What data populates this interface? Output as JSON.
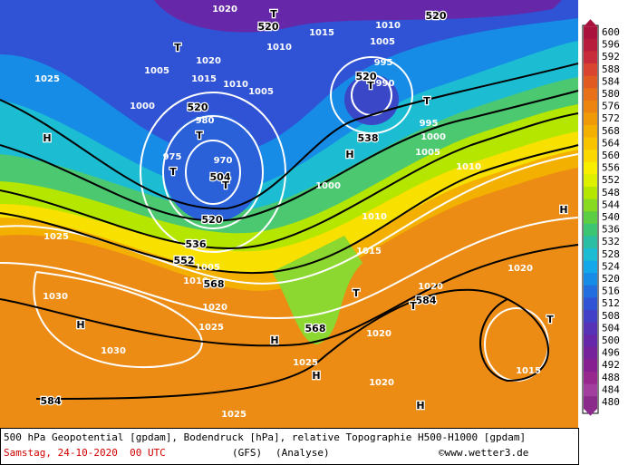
{
  "legend": {
    "levels": [
      600,
      596,
      592,
      588,
      584,
      580,
      576,
      572,
      568,
      564,
      560,
      556,
      552,
      548,
      544,
      540,
      536,
      532,
      528,
      524,
      520,
      516,
      512,
      508,
      504,
      500,
      496,
      492,
      488,
      484,
      480
    ],
    "colors": [
      "#a8123c",
      "#b81c3c",
      "#c82c3a",
      "#d84430",
      "#e05a22",
      "#e87018",
      "#ee8410",
      "#f09a08",
      "#f4b000",
      "#f8c400",
      "#fad800",
      "#f8ee00",
      "#dcf000",
      "#b4e600",
      "#88da20",
      "#5cce44",
      "#3cc674",
      "#2cbea4",
      "#1cbcd2",
      "#12a8ea",
      "#168ce6",
      "#226ede",
      "#3052d4",
      "#4240c6",
      "#5632b6",
      "#6628a8",
      "#76229a",
      "#862090",
      "#96288e",
      "#a23e9e",
      "#8a2a8a"
    ]
  },
  "map_labels": [
    "1020",
    "T",
    "520",
    "1010",
    "1015",
    "1010",
    "520",
    "1005",
    "995",
    "T",
    "1020",
    "1015",
    "1010",
    "1005",
    "1005",
    "520",
    "T",
    "990",
    "1025",
    "1000",
    "520",
    "980",
    "T",
    "T",
    "995",
    "1000",
    "538",
    "H",
    "975",
    "T",
    "970",
    "504",
    "T",
    "H",
    "1005",
    "1010",
    "1000",
    "520",
    "1010",
    "H",
    "1025",
    "536",
    "552",
    "1005",
    "1015",
    "1020",
    "1010",
    "568",
    "1030",
    "T",
    "584",
    "T",
    "1020",
    "1020",
    "H",
    "1025",
    "568",
    "1020",
    "H",
    "T",
    "1030",
    "1025",
    "1015",
    "H",
    "1020",
    "584",
    "H",
    "1025"
  ],
  "caption": {
    "description": "500 hPa Geopotential [gpdam], Bodendruck [hPa], relative Topographie H500-H1000 [gpdam]",
    "date": "Samstag, 24-10-2020  00 UTC",
    "model": "(GFS)",
    "analysis": "(Analyse)",
    "credit": "©www.wetter3.de"
  }
}
